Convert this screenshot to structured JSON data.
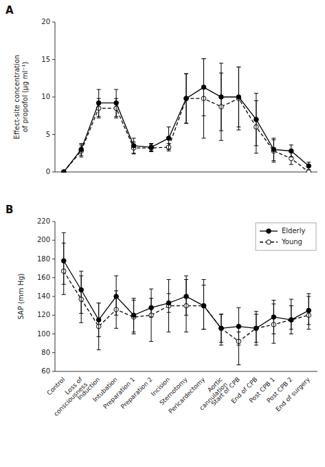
{
  "chart_data": [
    {
      "type": "line",
      "title": "A",
      "y_label": "Effect-site concentration\nof propofol (μg ml⁻¹)",
      "categories": [
        "Control",
        "Loss of\nconsciousness",
        "Induction",
        "Intubation",
        "Preparation 1",
        "Preparation 2",
        "Incision",
        "Sternotomy",
        "Pericardectomy",
        "Aortic\ncannulation",
        "Start of CPB",
        "End of CPB",
        "Post CPB 1",
        "Post CPB 2",
        "End of surgery"
      ],
      "tick_labels": "y",
      "grid": false,
      "ylim": [
        0,
        20
      ],
      "yticks": [
        0,
        5,
        10,
        15,
        20
      ],
      "series": [
        {
          "color": "black",
          "line_style": "solid",
          "marker": "filled",
          "values": [
            0,
            3.0,
            9.2,
            9.2,
            3.5,
            3.3,
            4.5,
            9.8,
            11.3,
            10.0,
            10.0,
            7.0,
            3.0,
            2.8,
            0.8
          ],
          "error_low": [
            0,
            0.8,
            1.8,
            1.8,
            1.0,
            0.5,
            1.5,
            3.3,
            3.8,
            4.5,
            4.0,
            3.5,
            1.5,
            0.8,
            0.5
          ],
          "error_high": [
            0,
            0.8,
            1.8,
            1.8,
            1.0,
            0.5,
            1.5,
            3.3,
            3.8,
            4.5,
            4.0,
            3.5,
            1.5,
            0.8,
            0.5
          ]
        },
        {
          "color": "black",
          "line_style": "dashed",
          "marker": "open",
          "values": [
            0,
            2.8,
            8.5,
            8.5,
            3.2,
            3.2,
            3.3,
            9.8,
            9.8,
            8.7,
            9.8,
            6.0,
            2.8,
            1.8,
            0.0
          ],
          "error_low": [
            0,
            0.8,
            1.3,
            1.3,
            0.8,
            0.5,
            0.5,
            3.3,
            5.3,
            4.5,
            4.2,
            3.5,
            1.5,
            0.8,
            0.0
          ],
          "error_high": [
            0,
            0.8,
            1.3,
            1.3,
            0.8,
            0.5,
            0.5,
            3.3,
            5.3,
            4.5,
            4.2,
            3.5,
            1.5,
            0.8,
            0.0
          ]
        }
      ]
    },
    {
      "type": "line",
      "title": "B",
      "y_label": "SAP (mm Hg)",
      "categories": [
        "Control",
        "Loss of\nconsciousness",
        "Induction",
        "Intubation",
        "Preparation 1",
        "Preparation 2",
        "Incision",
        "Sternotomy",
        "Pericardectomy",
        "Aortic\ncannulation",
        "Start of CPB",
        "End of CPB",
        "Post CPB 1",
        "Post CPB 2",
        "End of surgery"
      ],
      "grid": false,
      "legend": "upper right",
      "ylim": [
        60,
        220
      ],
      "yticks": [
        60,
        80,
        100,
        120,
        140,
        160,
        180,
        200,
        220
      ],
      "series": [
        {
          "name": "Elderly",
          "color": "black",
          "line_style": "solid",
          "marker": "filled",
          "values": [
            178,
            147,
            115,
            140,
            120,
            128,
            133,
            140,
            130,
            106,
            108,
            106,
            118,
            115,
            125
          ],
          "error_low": [
            25,
            25,
            18,
            20,
            18,
            10,
            10,
            20,
            25,
            15,
            20,
            15,
            18,
            10,
            15
          ],
          "error_high": [
            30,
            20,
            18,
            22,
            18,
            10,
            10,
            22,
            22,
            15,
            20,
            15,
            18,
            15,
            18
          ]
        },
        {
          "name": "Young",
          "color": "black",
          "line_style": "dashed",
          "marker": "open",
          "values": [
            167,
            137,
            108,
            126,
            118,
            120,
            130,
            130,
            130,
            106,
            92,
            106,
            110,
            115,
            120
          ],
          "error_low": [
            25,
            25,
            25,
            20,
            18,
            28,
            28,
            28,
            25,
            18,
            25,
            18,
            20,
            15,
            15
          ],
          "error_high": [
            30,
            25,
            25,
            20,
            18,
            28,
            28,
            28,
            28,
            15,
            10,
            18,
            22,
            22,
            20
          ]
        }
      ]
    }
  ]
}
